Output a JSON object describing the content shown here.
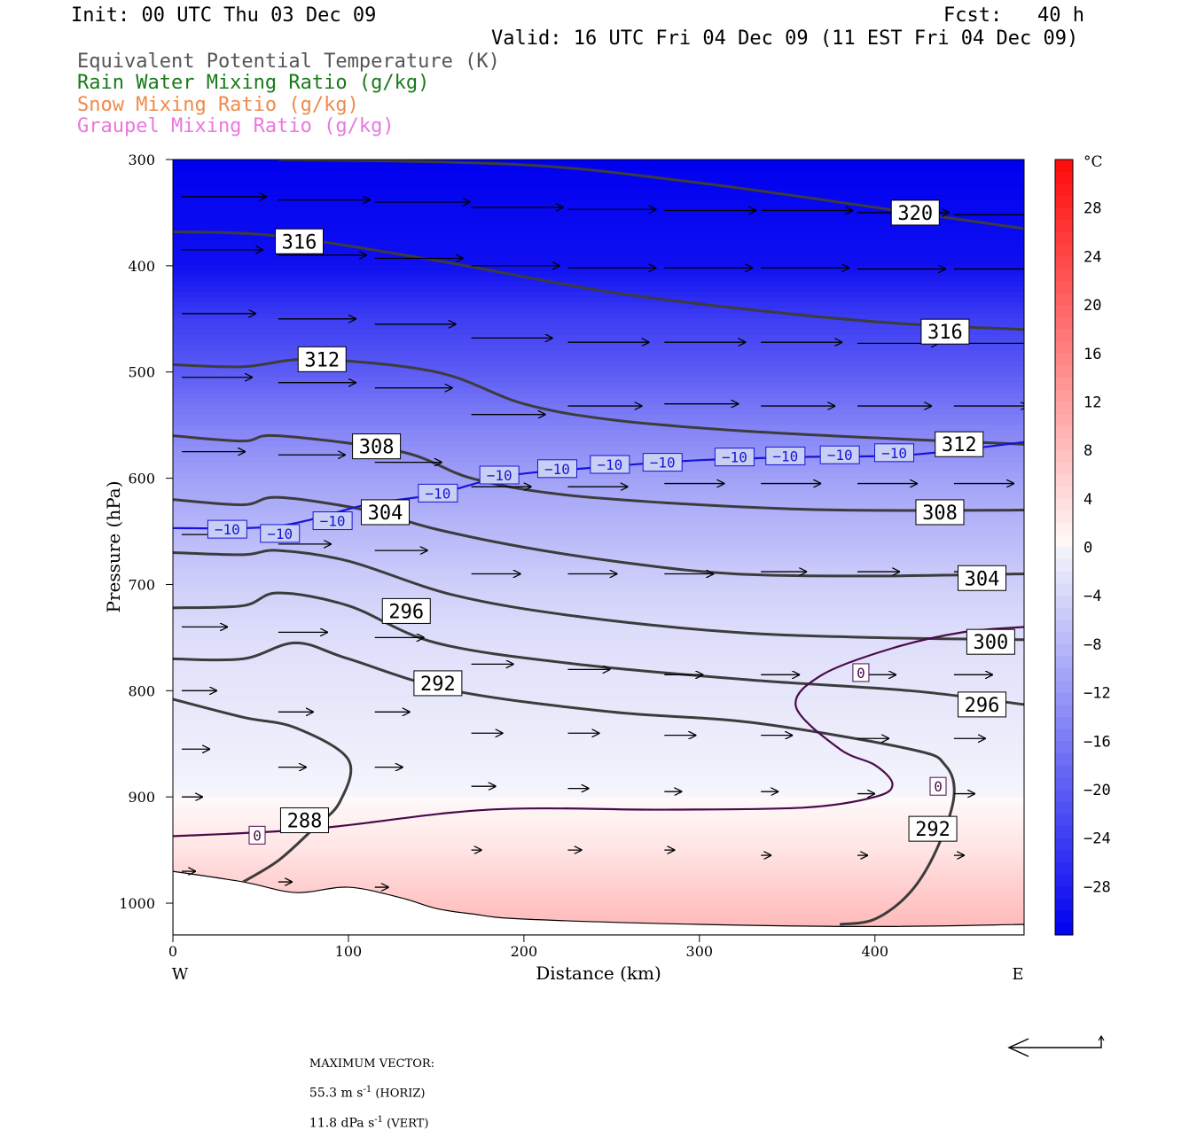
{
  "header": {
    "init": "Init: 00 UTC Thu 03 Dec 09",
    "fcst": "Fcst:   40 h",
    "valid": "Valid: 16 UTC Fri 04 Dec 09 (11 EST Fri 04 Dec 09)",
    "fields": [
      {
        "label": "Equivalent Potential Temperature (K)",
        "color": "#555555"
      },
      {
        "label": "Rain Water Mixing Ratio (g/kg)",
        "color": "#1a7a1a"
      },
      {
        "label": "Snow Mixing Ratio (g/kg)",
        "color": "#f08a4b"
      },
      {
        "label": "Graupel Mixing Ratio (g/kg)",
        "color": "#e878e0"
      }
    ]
  },
  "chart_data": {
    "type": "heatmap",
    "description_fields": [
      "temperature shading (°C)",
      "theta-e contours (K)",
      "wind vectors"
    ],
    "xlabel": "Distance (km)",
    "ylabel": "Pressure (hPa)",
    "xlim": [
      0,
      485
    ],
    "ylim": [
      1030,
      300
    ],
    "x_ticks": [
      0,
      100,
      200,
      300,
      400
    ],
    "y_ticks": [
      300,
      400,
      500,
      600,
      700,
      800,
      900,
      1000
    ],
    "x_end_labels": {
      "left": "W",
      "right": "E"
    },
    "colorbar": {
      "unit": "°C",
      "ticks": [
        28,
        24,
        20,
        16,
        12,
        8,
        4,
        0,
        -4,
        -8,
        -12,
        -16,
        -20,
        -24,
        -28
      ],
      "range": [
        -32,
        32
      ]
    },
    "temperature_profile": [
      {
        "p": 300,
        "t": -32
      },
      {
        "p": 400,
        "t": -30
      },
      {
        "p": 450,
        "t": -24
      },
      {
        "p": 500,
        "t": -20
      },
      {
        "p": 550,
        "t": -15
      },
      {
        "p": 600,
        "t": -11
      },
      {
        "p": 650,
        "t": -8
      },
      {
        "p": 700,
        "t": -5
      },
      {
        "p": 750,
        "t": -3
      },
      {
        "p": 800,
        "t": -2
      },
      {
        "p": 850,
        "t": -1
      },
      {
        "p": 900,
        "t": 0
      },
      {
        "p": 950,
        "t": 3
      },
      {
        "p": 1000,
        "t": 7
      },
      {
        "p": 1030,
        "t": 9
      }
    ],
    "theta_e_contours": [
      {
        "value": 320,
        "points": [
          [
            60,
            300
          ],
          [
            200,
            305
          ],
          [
            300,
            322
          ],
          [
            400,
            345
          ],
          [
            485,
            365
          ]
        ]
      },
      {
        "value": 316,
        "points": [
          [
            0,
            368
          ],
          [
            60,
            372
          ],
          [
            150,
            395
          ],
          [
            250,
            425
          ],
          [
            350,
            445
          ],
          [
            420,
            455
          ],
          [
            485,
            460
          ]
        ]
      },
      {
        "value": 312,
        "points": [
          [
            0,
            493
          ],
          [
            40,
            495
          ],
          [
            80,
            488
          ],
          [
            150,
            500
          ],
          [
            200,
            530
          ],
          [
            250,
            545
          ],
          [
            320,
            555
          ],
          [
            400,
            562
          ],
          [
            485,
            568
          ]
        ]
      },
      {
        "value": 308,
        "points": [
          [
            0,
            560
          ],
          [
            40,
            565
          ],
          [
            60,
            560
          ],
          [
            130,
            575
          ],
          [
            170,
            600
          ],
          [
            220,
            615
          ],
          [
            300,
            625
          ],
          [
            380,
            630
          ],
          [
            485,
            630
          ]
        ]
      },
      {
        "value": 304,
        "points": [
          [
            0,
            620
          ],
          [
            40,
            625
          ],
          [
            60,
            618
          ],
          [
            110,
            630
          ],
          [
            150,
            648
          ],
          [
            200,
            665
          ],
          [
            260,
            680
          ],
          [
            320,
            690
          ],
          [
            400,
            692
          ],
          [
            485,
            690
          ]
        ]
      },
      {
        "value": 300,
        "points": [
          [
            0,
            670
          ],
          [
            40,
            672
          ],
          [
            60,
            668
          ],
          [
            100,
            678
          ],
          [
            160,
            710
          ],
          [
            230,
            730
          ],
          [
            320,
            745
          ],
          [
            400,
            750
          ],
          [
            485,
            752
          ]
        ]
      },
      {
        "value": 296,
        "points": [
          [
            0,
            722
          ],
          [
            40,
            720
          ],
          [
            60,
            708
          ],
          [
            100,
            720
          ],
          [
            150,
            755
          ],
          [
            230,
            775
          ],
          [
            330,
            790
          ],
          [
            420,
            800
          ],
          [
            485,
            813
          ]
        ]
      },
      {
        "value": 292,
        "points": [
          [
            0,
            770
          ],
          [
            40,
            770
          ],
          [
            70,
            755
          ],
          [
            100,
            770
          ],
          [
            160,
            800
          ],
          [
            250,
            820
          ],
          [
            330,
            830
          ],
          [
            420,
            855
          ],
          [
            440,
            870
          ],
          [
            445,
            900
          ],
          [
            435,
            950
          ],
          [
            420,
            990
          ],
          [
            400,
            1015
          ],
          [
            380,
            1020
          ]
        ]
      },
      {
        "value": 288,
        "points": [
          [
            0,
            808
          ],
          [
            40,
            825
          ],
          [
            70,
            835
          ],
          [
            100,
            865
          ],
          [
            95,
            905
          ],
          [
            80,
            930
          ],
          [
            60,
            960
          ],
          [
            40,
            980
          ]
        ]
      }
    ],
    "zero_isotherm": {
      "value": 0,
      "points": [
        [
          0,
          937
        ],
        [
          80,
          930
        ],
        [
          180,
          912
        ],
        [
          280,
          912
        ],
        [
          360,
          910
        ],
        [
          400,
          900
        ],
        [
          410,
          888
        ],
        [
          400,
          870
        ],
        [
          380,
          855
        ],
        [
          355,
          815
        ],
        [
          370,
          785
        ],
        [
          410,
          760
        ],
        [
          450,
          745
        ],
        [
          485,
          740
        ]
      ]
    },
    "minus10_isotherm": {
      "value": -10,
      "points": [
        [
          0,
          647
        ],
        [
          60,
          645
        ],
        [
          110,
          625
        ],
        [
          150,
          615
        ],
        [
          190,
          598
        ],
        [
          240,
          590
        ],
        [
          300,
          583
        ],
        [
          360,
          580
        ],
        [
          420,
          578
        ],
        [
          485,
          566
        ]
      ]
    },
    "contour_labels": [
      {
        "text": "320",
        "x": 423,
        "y": 350
      },
      {
        "text": "316",
        "x": 72,
        "y": 377
      },
      {
        "text": "316",
        "x": 440,
        "y": 462
      },
      {
        "text": "312",
        "x": 85,
        "y": 488
      },
      {
        "text": "312",
        "x": 448,
        "y": 568
      },
      {
        "text": "308",
        "x": 116,
        "y": 570
      },
      {
        "text": "308",
        "x": 437,
        "y": 632
      },
      {
        "text": "304",
        "x": 121,
        "y": 632
      },
      {
        "text": "304",
        "x": 461,
        "y": 694
      },
      {
        "text": "300",
        "x": 466,
        "y": 754
      },
      {
        "text": "296",
        "x": 133,
        "y": 725
      },
      {
        "text": "296",
        "x": 461,
        "y": 813
      },
      {
        "text": "292",
        "x": 151,
        "y": 793
      },
      {
        "text": "292",
        "x": 433,
        "y": 930
      },
      {
        "text": "288",
        "x": 75,
        "y": 922
      }
    ],
    "isotherm_labels": [
      {
        "text": "-10",
        "x": 31,
        "y": 648
      },
      {
        "text": "-10",
        "x": 61,
        "y": 652
      },
      {
        "text": "-10",
        "x": 91,
        "y": 640
      },
      {
        "text": "-10",
        "x": 151,
        "y": 614
      },
      {
        "text": "-10",
        "x": 186,
        "y": 597
      },
      {
        "text": "-10",
        "x": 219,
        "y": 591
      },
      {
        "text": "-10",
        "x": 249,
        "y": 587
      },
      {
        "text": "-10",
        "x": 279,
        "y": 585
      },
      {
        "text": "-10",
        "x": 320,
        "y": 580
      },
      {
        "text": "-10",
        "x": 349,
        "y": 579
      },
      {
        "text": "-10",
        "x": 380,
        "y": 578
      },
      {
        "text": "-10",
        "x": 411,
        "y": 576
      },
      {
        "text": "0",
        "x": 48,
        "y": 936
      },
      {
        "text": "0",
        "x": 392,
        "y": 783
      },
      {
        "text": "0",
        "x": 436,
        "y": 890
      }
    ],
    "wind_vectors": [
      {
        "x": 0,
        "p": 335,
        "u": 48,
        "w": 0
      },
      {
        "x": 55,
        "p": 338,
        "u": 52,
        "w": 0
      },
      {
        "x": 110,
        "p": 340,
        "u": 54,
        "w": 0
      },
      {
        "x": 165,
        "p": 345,
        "u": 52,
        "w": 0
      },
      {
        "x": 220,
        "p": 347,
        "u": 50,
        "w": 0
      },
      {
        "x": 275,
        "p": 348,
        "u": 52,
        "w": 0
      },
      {
        "x": 330,
        "p": 348,
        "u": 52,
        "w": 0
      },
      {
        "x": 385,
        "p": 350,
        "u": 52,
        "w": 0
      },
      {
        "x": 440,
        "p": 352,
        "u": 55,
        "w": 0
      },
      {
        "x": 0,
        "p": 385,
        "u": 46,
        "w": 0
      },
      {
        "x": 55,
        "p": 390,
        "u": 50,
        "w": 0
      },
      {
        "x": 110,
        "p": 393,
        "u": 50,
        "w": 0
      },
      {
        "x": 165,
        "p": 400,
        "u": 50,
        "w": 0
      },
      {
        "x": 220,
        "p": 402,
        "u": 50,
        "w": 0
      },
      {
        "x": 275,
        "p": 402,
        "u": 50,
        "w": 0
      },
      {
        "x": 330,
        "p": 402,
        "u": 50,
        "w": 0
      },
      {
        "x": 385,
        "p": 403,
        "u": 50,
        "w": 0
      },
      {
        "x": 440,
        "p": 403,
        "u": 50,
        "w": 0
      },
      {
        "x": 0,
        "p": 445,
        "u": 42,
        "w": 0
      },
      {
        "x": 55,
        "p": 450,
        "u": 44,
        "w": 0
      },
      {
        "x": 110,
        "p": 455,
        "u": 46,
        "w": 0
      },
      {
        "x": 165,
        "p": 468,
        "u": 46,
        "w": 0
      },
      {
        "x": 220,
        "p": 472,
        "u": 46,
        "w": 0
      },
      {
        "x": 275,
        "p": 472,
        "u": 46,
        "w": 0
      },
      {
        "x": 330,
        "p": 472,
        "u": 46,
        "w": 0
      },
      {
        "x": 385,
        "p": 473,
        "u": 46,
        "w": 0
      },
      {
        "x": 440,
        "p": 473,
        "u": 46,
        "w": 0
      },
      {
        "x": 0,
        "p": 505,
        "u": 40,
        "w": 0
      },
      {
        "x": 55,
        "p": 510,
        "u": 44,
        "w": 0
      },
      {
        "x": 110,
        "p": 515,
        "u": 44,
        "w": 0
      },
      {
        "x": 165,
        "p": 540,
        "u": 42,
        "w": 0
      },
      {
        "x": 220,
        "p": 532,
        "u": 42,
        "w": 0
      },
      {
        "x": 275,
        "p": 530,
        "u": 42,
        "w": 0
      },
      {
        "x": 330,
        "p": 532,
        "u": 42,
        "w": 0
      },
      {
        "x": 385,
        "p": 532,
        "u": 42,
        "w": 0
      },
      {
        "x": 440,
        "p": 532,
        "u": 42,
        "w": 0
      },
      {
        "x": 0,
        "p": 575,
        "u": 36,
        "w": 0
      },
      {
        "x": 55,
        "p": 578,
        "u": 38,
        "w": 0
      },
      {
        "x": 110,
        "p": 585,
        "u": 38,
        "w": 0
      },
      {
        "x": 165,
        "p": 608,
        "u": 34,
        "w": 0
      },
      {
        "x": 220,
        "p": 608,
        "u": 34,
        "w": 0
      },
      {
        "x": 275,
        "p": 605,
        "u": 34,
        "w": 0
      },
      {
        "x": 330,
        "p": 605,
        "u": 34,
        "w": 0
      },
      {
        "x": 385,
        "p": 605,
        "u": 34,
        "w": 0
      },
      {
        "x": 440,
        "p": 605,
        "u": 34,
        "w": 0
      },
      {
        "x": 0,
        "p": 653,
        "u": 30,
        "w": 0
      },
      {
        "x": 55,
        "p": 662,
        "u": 30,
        "w": 0
      },
      {
        "x": 110,
        "p": 668,
        "u": 30,
        "w": 0
      },
      {
        "x": 165,
        "p": 690,
        "u": 28,
        "w": 0
      },
      {
        "x": 220,
        "p": 690,
        "u": 28,
        "w": 0
      },
      {
        "x": 275,
        "p": 690,
        "u": 28,
        "w": 0
      },
      {
        "x": 330,
        "p": 688,
        "u": 26,
        "w": 0
      },
      {
        "x": 385,
        "p": 688,
        "u": 24,
        "w": 0
      },
      {
        "x": 440,
        "p": 688,
        "u": 24,
        "w": 0
      },
      {
        "x": 0,
        "p": 740,
        "u": 26,
        "w": 0
      },
      {
        "x": 55,
        "p": 745,
        "u": 28,
        "w": 0
      },
      {
        "x": 110,
        "p": 750,
        "u": 28,
        "w": 0
      },
      {
        "x": 165,
        "p": 775,
        "u": 24,
        "w": 0
      },
      {
        "x": 220,
        "p": 780,
        "u": 24,
        "w": 0
      },
      {
        "x": 275,
        "p": 785,
        "u": 22,
        "w": 0
      },
      {
        "x": 330,
        "p": 785,
        "u": 22,
        "w": 0
      },
      {
        "x": 385,
        "p": 785,
        "u": 22,
        "w": 0
      },
      {
        "x": 440,
        "p": 785,
        "u": 22,
        "w": 0
      },
      {
        "x": 0,
        "p": 800,
        "u": 20,
        "w": 0
      },
      {
        "x": 55,
        "p": 820,
        "u": 20,
        "w": 0
      },
      {
        "x": 110,
        "p": 820,
        "u": 20,
        "w": 0
      },
      {
        "x": 165,
        "p": 840,
        "u": 18,
        "w": 0
      },
      {
        "x": 220,
        "p": 840,
        "u": 18,
        "w": 0
      },
      {
        "x": 275,
        "p": 842,
        "u": 18,
        "w": 0
      },
      {
        "x": 330,
        "p": 842,
        "u": 18,
        "w": 0
      },
      {
        "x": 385,
        "p": 845,
        "u": 18,
        "w": 0
      },
      {
        "x": 440,
        "p": 845,
        "u": 18,
        "w": 0
      },
      {
        "x": 0,
        "p": 855,
        "u": 16,
        "w": 0
      },
      {
        "x": 55,
        "p": 872,
        "u": 16,
        "w": 0
      },
      {
        "x": 110,
        "p": 872,
        "u": 16,
        "w": 0
      },
      {
        "x": 165,
        "p": 890,
        "u": 14,
        "w": 0
      },
      {
        "x": 220,
        "p": 892,
        "u": 12,
        "w": 0
      },
      {
        "x": 275,
        "p": 895,
        "u": 10,
        "w": 0
      },
      {
        "x": 330,
        "p": 895,
        "u": 10,
        "w": 0
      },
      {
        "x": 385,
        "p": 897,
        "u": 10,
        "w": 0
      },
      {
        "x": 440,
        "p": 897,
        "u": 12,
        "w": 0
      },
      {
        "x": 0,
        "p": 900,
        "u": 12,
        "w": 0
      },
      {
        "x": 0,
        "p": 970,
        "u": 8,
        "w": 0
      },
      {
        "x": 55,
        "p": 980,
        "u": 8,
        "w": 0
      },
      {
        "x": 110,
        "p": 985,
        "u": 8,
        "w": 0
      },
      {
        "x": 165,
        "p": 950,
        "u": 6,
        "w": 0
      },
      {
        "x": 220,
        "p": 950,
        "u": 8,
        "w": 0
      },
      {
        "x": 275,
        "p": 950,
        "u": 6,
        "w": 0
      },
      {
        "x": 330,
        "p": 955,
        "u": 6,
        "w": 0
      },
      {
        "x": 385,
        "p": 955,
        "u": 6,
        "w": 0
      },
      {
        "x": 440,
        "p": 955,
        "u": 6,
        "w": 0
      }
    ],
    "terrain": [
      [
        0,
        970
      ],
      [
        40,
        980
      ],
      [
        70,
        990
      ],
      [
        100,
        985
      ],
      [
        130,
        995
      ],
      [
        150,
        1005
      ],
      [
        170,
        1010
      ],
      [
        200,
        1015
      ],
      [
        300,
        1020
      ],
      [
        400,
        1022
      ],
      [
        485,
        1020
      ]
    ]
  },
  "footer": {
    "max_vector_label": "MAXIMUM VECTOR:",
    "horiz": "55.3 m s",
    "horiz_sup": "-1",
    "horiz_tag": " (HORIZ)",
    "vert": "11.8 dPa s",
    "vert_sup": "-1",
    "vert_tag": " (VERT)"
  }
}
